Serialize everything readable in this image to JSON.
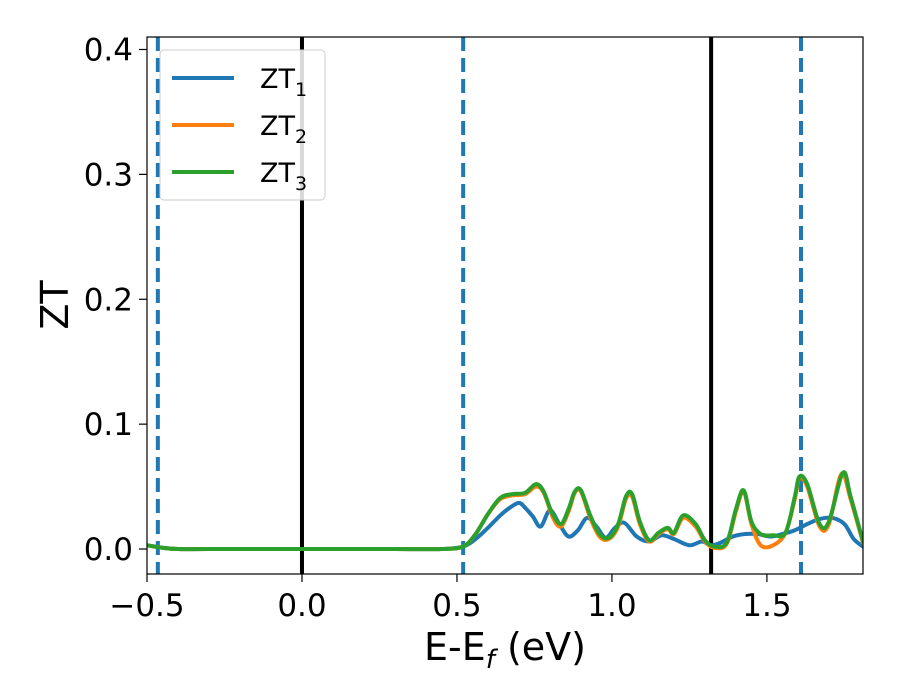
{
  "chart_data": {
    "type": "line",
    "xlabel": "E-E",
    "xlabel_subscript": "f",
    "xlabel_suffix": " (eV)",
    "ylabel": "ZT",
    "xlim": [
      -0.5,
      1.81
    ],
    "ylim": [
      -0.02,
      0.41
    ],
    "x_ticks": [
      -0.5,
      0.0,
      0.5,
      1.0,
      1.5
    ],
    "x_tick_labels": [
      "−0.5",
      "0.0",
      "0.5",
      "1.0",
      "1.5"
    ],
    "y_ticks": [
      0.0,
      0.1,
      0.2,
      0.3,
      0.4
    ],
    "y_tick_labels": [
      "0.0",
      "0.1",
      "0.2",
      "0.3",
      "0.4"
    ],
    "grid": false,
    "legend_placement": "top-left",
    "vertical_lines": [
      {
        "x": -0.465,
        "style": "dashed",
        "color": "#1f77b4"
      },
      {
        "x": 0.0,
        "style": "solid",
        "color": "#000000"
      },
      {
        "x": 0.52,
        "style": "dashed",
        "color": "#1f77b4"
      },
      {
        "x": 1.32,
        "style": "solid",
        "color": "#000000"
      },
      {
        "x": 1.61,
        "style": "dashed",
        "color": "#1f77b4"
      }
    ],
    "series": [
      {
        "name": "ZT",
        "subscript": "1",
        "color": "#1f77b4",
        "x": [
          -0.5,
          -0.45,
          -0.4,
          -0.3,
          0.0,
          0.3,
          0.45,
          0.52,
          0.56,
          0.6,
          0.64,
          0.67,
          0.7,
          0.72,
          0.745,
          0.77,
          0.8,
          0.83,
          0.86,
          0.89,
          0.92,
          0.95,
          0.98,
          1.01,
          1.04,
          1.08,
          1.12,
          1.16,
          1.2,
          1.25,
          1.29,
          1.32,
          1.35,
          1.39,
          1.43,
          1.47,
          1.51,
          1.55,
          1.59,
          1.63,
          1.67,
          1.71,
          1.75,
          1.78,
          1.81
        ],
        "values": [
          0.003,
          0.001,
          0.0,
          0.0,
          0.0,
          0.0,
          0.0,
          0.002,
          0.008,
          0.017,
          0.027,
          0.033,
          0.037,
          0.033,
          0.026,
          0.018,
          0.031,
          0.02,
          0.01,
          0.015,
          0.025,
          0.018,
          0.009,
          0.017,
          0.021,
          0.01,
          0.006,
          0.011,
          0.008,
          0.003,
          0.006,
          0.003,
          0.005,
          0.01,
          0.012,
          0.012,
          0.01,
          0.012,
          0.015,
          0.02,
          0.024,
          0.025,
          0.02,
          0.008,
          0.002
        ]
      },
      {
        "name": "ZT",
        "subscript": "2",
        "color": "#ff7f0e",
        "x": [
          -0.5,
          -0.45,
          -0.4,
          -0.3,
          0.0,
          0.3,
          0.45,
          0.52,
          0.56,
          0.6,
          0.64,
          0.68,
          0.72,
          0.755,
          0.78,
          0.81,
          0.835,
          0.86,
          0.88,
          0.9,
          0.93,
          0.96,
          0.99,
          1.02,
          1.045,
          1.065,
          1.09,
          1.12,
          1.15,
          1.18,
          1.2,
          1.23,
          1.27,
          1.3,
          1.33,
          1.37,
          1.4,
          1.425,
          1.45,
          1.48,
          1.52,
          1.56,
          1.59,
          1.605,
          1.63,
          1.67,
          1.7,
          1.74,
          1.77,
          1.81
        ],
        "values": [
          0.003,
          0.001,
          0.0,
          0.0,
          0.0,
          0.0,
          0.0,
          0.002,
          0.012,
          0.028,
          0.04,
          0.043,
          0.044,
          0.05,
          0.045,
          0.025,
          0.018,
          0.03,
          0.045,
          0.046,
          0.025,
          0.01,
          0.008,
          0.018,
          0.04,
          0.042,
          0.02,
          0.006,
          0.012,
          0.016,
          0.012,
          0.025,
          0.018,
          0.006,
          0.001,
          0.004,
          0.03,
          0.046,
          0.02,
          0.003,
          0.003,
          0.013,
          0.04,
          0.057,
          0.05,
          0.018,
          0.02,
          0.06,
          0.04,
          0.005
        ]
      },
      {
        "name": "ZT",
        "subscript": "3",
        "color": "#2ca02c",
        "x": [
          -0.5,
          -0.45,
          -0.4,
          -0.3,
          0.0,
          0.3,
          0.45,
          0.52,
          0.56,
          0.6,
          0.64,
          0.68,
          0.72,
          0.755,
          0.78,
          0.805,
          0.835,
          0.86,
          0.88,
          0.9,
          0.93,
          0.96,
          0.99,
          1.02,
          1.045,
          1.065,
          1.09,
          1.12,
          1.15,
          1.18,
          1.2,
          1.23,
          1.27,
          1.3,
          1.33,
          1.37,
          1.4,
          1.425,
          1.45,
          1.48,
          1.52,
          1.56,
          1.59,
          1.605,
          1.63,
          1.67,
          1.7,
          1.745,
          1.77,
          1.81
        ],
        "values": [
          0.003,
          0.001,
          0.0,
          0.0,
          0.0,
          0.0,
          0.0,
          0.002,
          0.012,
          0.028,
          0.041,
          0.044,
          0.045,
          0.052,
          0.046,
          0.03,
          0.02,
          0.032,
          0.046,
          0.047,
          0.027,
          0.012,
          0.009,
          0.02,
          0.042,
          0.044,
          0.022,
          0.007,
          0.013,
          0.017,
          0.013,
          0.027,
          0.02,
          0.007,
          0.002,
          0.005,
          0.032,
          0.047,
          0.022,
          0.012,
          0.011,
          0.013,
          0.042,
          0.058,
          0.052,
          0.02,
          0.022,
          0.061,
          0.042,
          0.006
        ]
      }
    ]
  }
}
